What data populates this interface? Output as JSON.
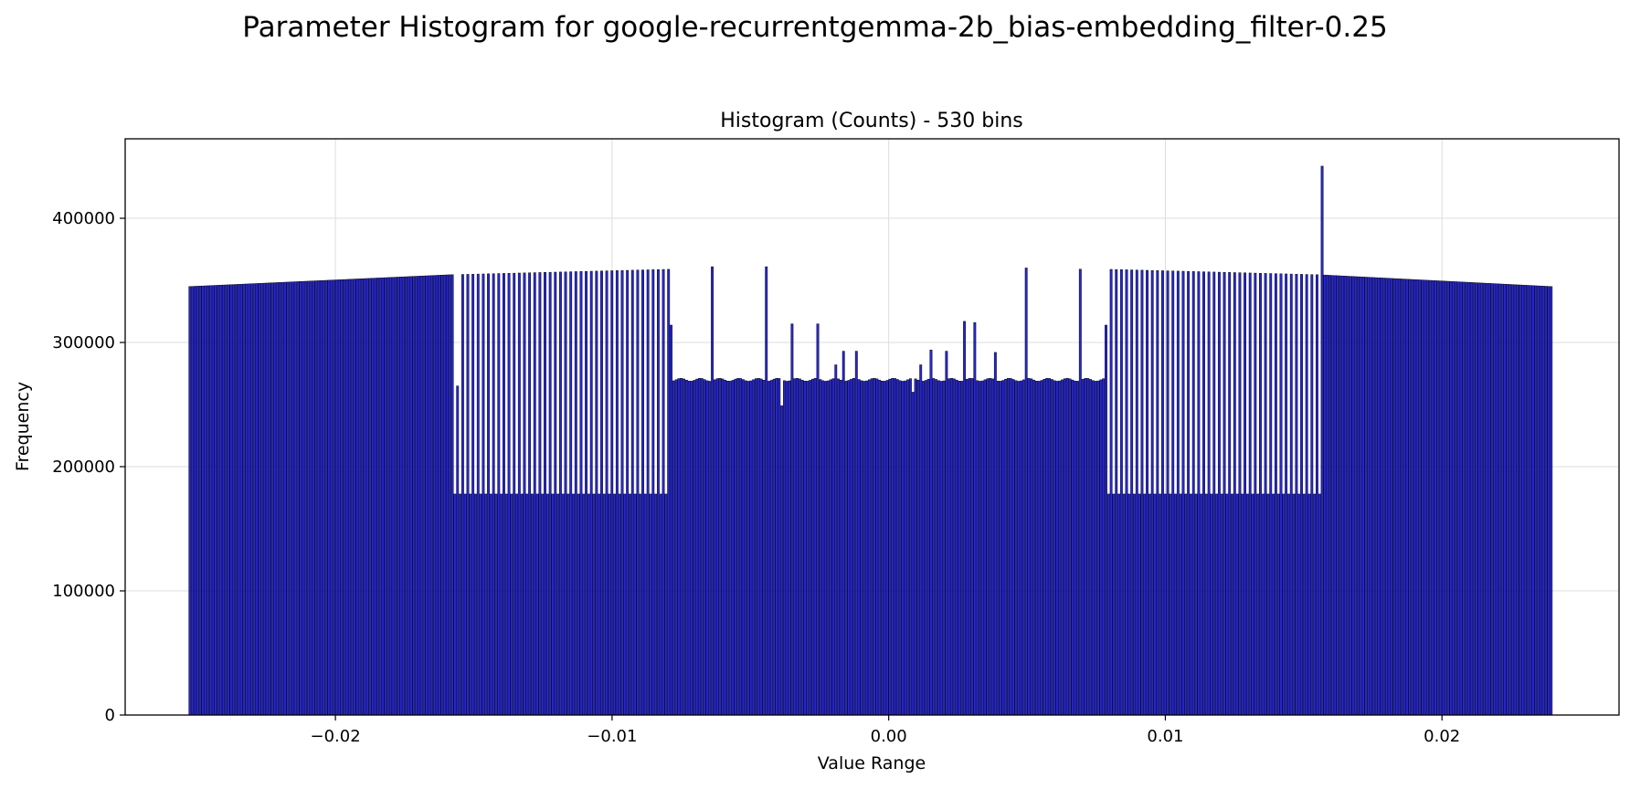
{
  "figure": {
    "suptitle": "Parameter Histogram for google-recurrentgemma-2b_bias-embedding_filter-0.25"
  },
  "chart_data": {
    "type": "bar",
    "title": "Histogram (Counts) - 530 bins",
    "xlabel": "Value Range",
    "ylabel": "Frequency",
    "xlim": [
      -0.0276,
      0.0264
    ],
    "ylim": [
      0,
      464000
    ],
    "xticks": [
      -0.02,
      -0.01,
      0.0,
      0.01,
      0.02
    ],
    "xtick_labels": [
      "−0.02",
      "−0.01",
      "0.00",
      "0.01",
      "0.02"
    ],
    "yticks": [
      0,
      100000,
      200000,
      300000,
      400000
    ],
    "ytick_labels": [
      "0",
      "100000",
      "200000",
      "300000",
      "400000"
    ],
    "grid": true,
    "bar_color": "#0000cc",
    "edge_color": "#000000",
    "bins": 530,
    "bin_range": [
      -0.0253,
      0.024
    ],
    "count_profile": {
      "note_values": "piecewise per-bin counts read from the plot",
      "outer_start": 345000,
      "outer_peak": 359000,
      "alternating_low_left": 178000,
      "alternating_low_right": 178000,
      "center_level": 270000
    },
    "spikes": [
      {
        "x": -0.0079,
        "value": 314000
      },
      {
        "x": -0.0064,
        "value": 361000
      },
      {
        "x": -0.0044,
        "value": 361000
      },
      {
        "x": -0.0035,
        "value": 315000
      },
      {
        "x": -0.0026,
        "value": 315000
      },
      {
        "x": -0.0019,
        "value": 282000
      },
      {
        "x": -0.0016,
        "value": 293000
      },
      {
        "x": -0.0012,
        "value": 293000
      },
      {
        "x": 0.0012,
        "value": 282000
      },
      {
        "x": 0.0015,
        "value": 294000
      },
      {
        "x": 0.0021,
        "value": 293000
      },
      {
        "x": 0.0027,
        "value": 317000
      },
      {
        "x": 0.0031,
        "value": 316000
      },
      {
        "x": 0.0039,
        "value": 292000
      },
      {
        "x": 0.005,
        "value": 360000
      },
      {
        "x": 0.0069,
        "value": 359000
      },
      {
        "x": 0.0079,
        "value": 314000
      },
      {
        "x": 0.0157,
        "value": 442000
      }
    ],
    "dips": [
      {
        "x": -0.0156,
        "value": 265000
      },
      {
        "x": -0.0039,
        "value": 249000
      },
      {
        "x": 0.0009,
        "value": 260000
      }
    ]
  }
}
